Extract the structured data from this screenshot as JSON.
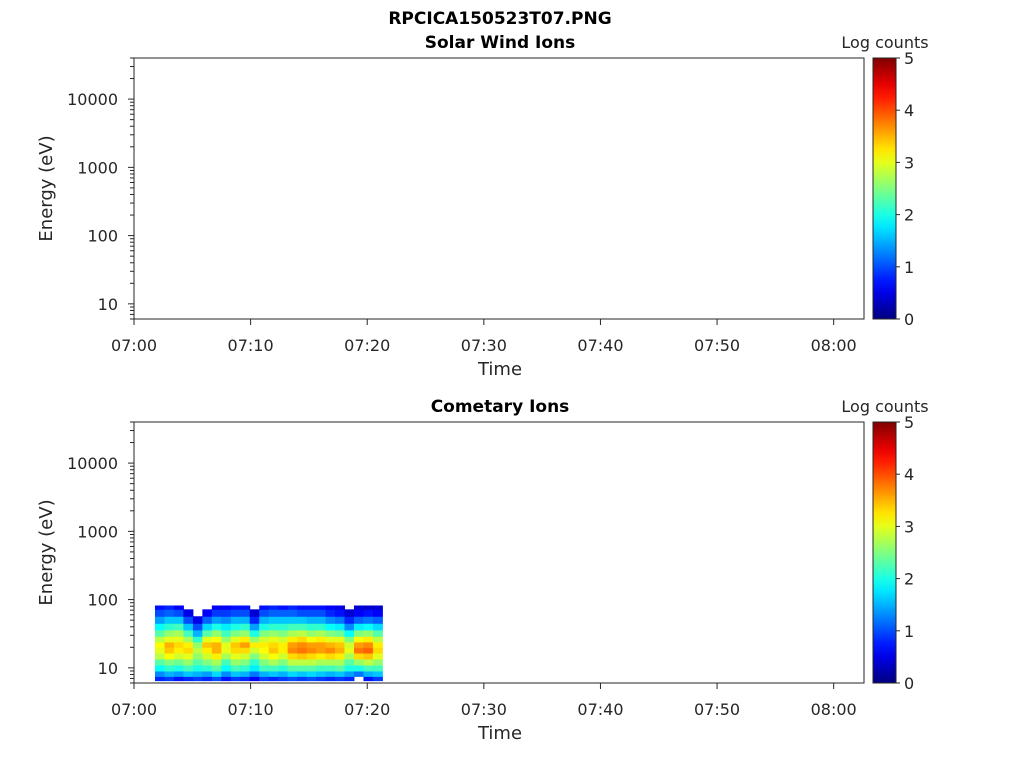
{
  "figure_title": "RPCICA150523T07.PNG",
  "chart_data": [
    {
      "type": "heatmap",
      "title": "Solar Wind Ions",
      "xlabel": "Time",
      "ylabel": "Energy (eV)",
      "x_tick_labels": [
        "07:00",
        "07:10",
        "07:20",
        "07:30",
        "07:40",
        "07:50",
        "08:00"
      ],
      "x_ticks_minutes": [
        0,
        10,
        20,
        30,
        40,
        50,
        60
      ],
      "xlim_minutes_after_0700": [
        0,
        62.6
      ],
      "y_scale": "log",
      "y_tick_labels": [
        "10",
        "100",
        "1000",
        "10000"
      ],
      "y_ticks": [
        10,
        100,
        1000,
        10000
      ],
      "ylim": [
        6,
        40000
      ],
      "colorbar": {
        "label": "Log counts",
        "tick_labels": [
          "0",
          "1",
          "2",
          "3",
          "4",
          "5"
        ],
        "range": [
          0,
          5
        ],
        "colormap": "jet"
      },
      "data": null
    },
    {
      "type": "heatmap",
      "title": "Cometary Ions",
      "xlabel": "Time",
      "ylabel": "Energy (eV)",
      "x_tick_labels": [
        "07:00",
        "07:10",
        "07:20",
        "07:30",
        "07:40",
        "07:50",
        "08:00"
      ],
      "x_ticks_minutes": [
        0,
        10,
        20,
        30,
        40,
        50,
        60
      ],
      "xlim_minutes_after_0700": [
        0,
        62.6
      ],
      "y_scale": "log",
      "y_tick_labels": [
        "10",
        "100",
        "1000",
        "10000"
      ],
      "y_ticks": [
        10,
        100,
        1000,
        10000
      ],
      "ylim": [
        6,
        40000
      ],
      "colorbar": {
        "label": "Log counts",
        "tick_labels": [
          "0",
          "1",
          "2",
          "3",
          "4",
          "5"
        ],
        "range": [
          0,
          5
        ],
        "colormap": "jet"
      },
      "data": {
        "time_start_minutes": 1.8,
        "time_end_minutes": 21.3,
        "energy_bins_eV": [
          6.5,
          7.5,
          9,
          11,
          13.5,
          16.5,
          20,
          24,
          29,
          36,
          45,
          57,
          72,
          82
        ],
        "log_counts_time_by_energy": [
          [
            0.8,
            1.3,
            1.9,
            2.3,
            2.8,
            3.0,
            3.1,
            2.8,
            2.3,
            1.9,
            1.4,
            1.0,
            0.7
          ],
          [
            0.9,
            1.5,
            2.1,
            2.5,
            3.1,
            3.4,
            3.5,
            3.0,
            2.6,
            2.1,
            1.6,
            1.1,
            0.8
          ],
          [
            0.7,
            1.4,
            2.0,
            2.4,
            2.9,
            3.2,
            3.3,
            3.0,
            2.7,
            2.2,
            1.6,
            1.0,
            0.6
          ],
          [
            0.8,
            1.6,
            2.2,
            2.6,
            3.0,
            3.3,
            3.2,
            2.7,
            2.2,
            1.6,
            1.0,
            0.5,
            null
          ],
          [
            0.9,
            1.5,
            2.0,
            2.3,
            2.6,
            2.8,
            2.6,
            2.1,
            1.5,
            1.0,
            0.5,
            null,
            null
          ],
          [
            0.8,
            1.4,
            2.1,
            2.5,
            2.9,
            3.2,
            3.4,
            3.0,
            2.3,
            1.7,
            1.1,
            0.6,
            null
          ],
          [
            1.0,
            1.7,
            2.3,
            2.7,
            3.2,
            3.5,
            3.5,
            3.1,
            2.6,
            2.0,
            1.4,
            0.9,
            0.6
          ],
          [
            0.7,
            1.3,
            1.9,
            2.2,
            2.7,
            3.0,
            3.0,
            2.6,
            2.2,
            1.8,
            1.3,
            0.9,
            0.6
          ],
          [
            0.9,
            1.6,
            2.2,
            2.6,
            3.0,
            3.3,
            3.4,
            3.0,
            2.5,
            2.0,
            1.5,
            1.0,
            0.7
          ],
          [
            0.8,
            1.5,
            2.1,
            2.5,
            2.9,
            3.3,
            3.6,
            3.2,
            2.6,
            2.1,
            1.5,
            1.0,
            0.7
          ],
          [
            0.6,
            1.2,
            1.8,
            2.1,
            2.5,
            2.9,
            3.2,
            2.6,
            2.0,
            1.4,
            0.8,
            0.4,
            null
          ],
          [
            0.9,
            1.5,
            2.2,
            2.5,
            2.9,
            3.1,
            3.2,
            2.9,
            2.5,
            2.0,
            1.5,
            1.0,
            0.7
          ],
          [
            0.8,
            1.6,
            2.2,
            2.7,
            3.1,
            3.4,
            3.3,
            3.0,
            2.6,
            2.1,
            1.6,
            1.1,
            0.8
          ],
          [
            0.9,
            1.5,
            2.1,
            2.5,
            2.9,
            3.2,
            3.2,
            2.9,
            2.5,
            2.1,
            1.6,
            1.1,
            0.7
          ],
          [
            1.0,
            1.7,
            2.3,
            2.8,
            3.3,
            3.7,
            3.6,
            3.2,
            2.7,
            2.2,
            1.6,
            1.1,
            0.8
          ],
          [
            0.9,
            1.6,
            2.3,
            2.8,
            3.4,
            3.8,
            3.7,
            3.3,
            2.8,
            2.2,
            1.6,
            1.0,
            0.7
          ],
          [
            1.0,
            1.7,
            2.3,
            2.8,
            3.3,
            3.7,
            3.6,
            3.1,
            2.6,
            2.1,
            1.5,
            1.0,
            0.7
          ],
          [
            0.9,
            1.6,
            2.2,
            2.7,
            3.2,
            3.6,
            3.6,
            3.2,
            2.7,
            2.1,
            1.5,
            1.0,
            0.7
          ],
          [
            0.8,
            1.5,
            2.2,
            2.7,
            3.3,
            3.7,
            3.5,
            3.0,
            2.5,
            1.9,
            1.3,
            0.8,
            0.6
          ],
          [
            0.9,
            1.6,
            2.3,
            2.7,
            3.2,
            3.5,
            3.4,
            3.0,
            2.4,
            1.8,
            1.2,
            0.7,
            0.5
          ],
          [
            0.8,
            1.4,
            2.0,
            2.3,
            2.7,
            3.0,
            2.9,
            2.5,
            1.9,
            1.3,
            0.8,
            0.4,
            null
          ],
          [
            null,
            1.2,
            2.0,
            2.6,
            3.3,
            3.8,
            3.6,
            3.1,
            2.5,
            1.8,
            1.1,
            0.6,
            0.4
          ],
          [
            0.7,
            1.5,
            2.2,
            2.8,
            3.4,
            3.9,
            3.7,
            3.2,
            2.6,
            1.9,
            1.2,
            0.7,
            0.4
          ],
          [
            0.9,
            1.6,
            2.2,
            2.6,
            3.0,
            3.3,
            3.2,
            2.8,
            2.3,
            1.7,
            1.1,
            0.6,
            0.4
          ]
        ]
      }
    }
  ]
}
